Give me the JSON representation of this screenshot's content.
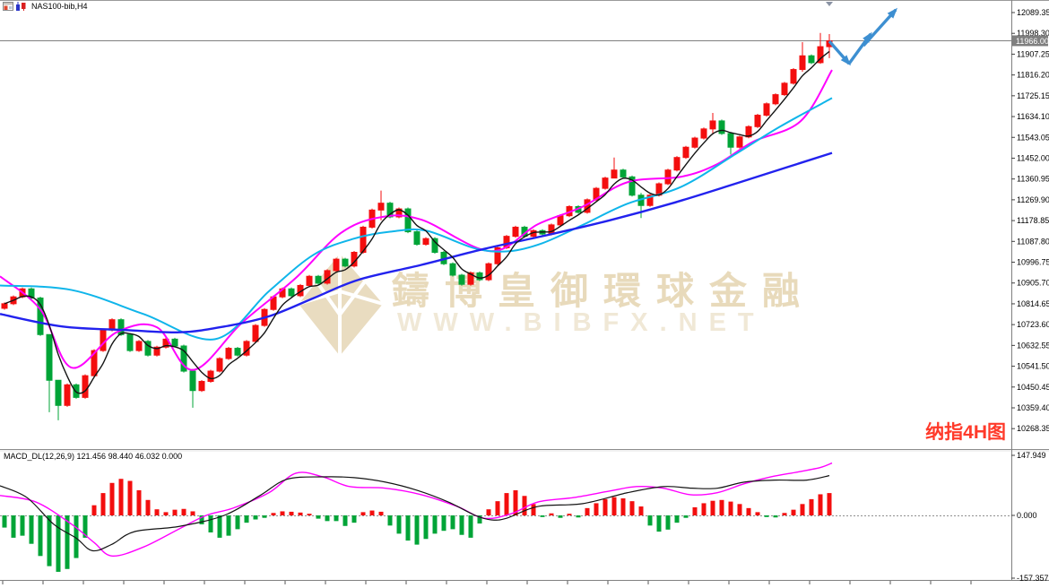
{
  "header": {
    "symbol": "NAS100-bib,H4"
  },
  "annotation": {
    "text": "纳指4H图",
    "color": "#ff3a2a"
  },
  "watermark": {
    "brand_text": "鑄博皇御環球金融",
    "url_text": "WWW.BIBFX.NET",
    "brand_color": "#e8dabb",
    "url_color": "#f0e8d6",
    "diamond_color": "#e9dcc0"
  },
  "macd_panel": {
    "label": "MACD_DL(12,26,9) 121.456 98.440 46.032 0.000",
    "axis_ticks": [
      "147.949",
      "0.000",
      "-157.357"
    ]
  },
  "price_axis": {
    "ticks": [
      "12089.35",
      "11998.30",
      "11907.25",
      "11816.20",
      "11725.15",
      "11634.10",
      "11543.05",
      "11452.00",
      "11360.95",
      "11269.90",
      "11178.85",
      "11087.80",
      "10996.75",
      "10905.70",
      "10814.65",
      "10723.60",
      "10632.55",
      "10541.50",
      "10450.45",
      "10359.40",
      "10268.35"
    ],
    "current_price": "11966.00",
    "badge_bg": "#7f7f7f",
    "badge_text_color": "#ffffff"
  },
  "chart_data": {
    "type": "candlestick",
    "symbol": "NAS100-bib",
    "timeframe": "H4",
    "ylim": [
      10268.35,
      12089.35
    ],
    "colors": {
      "bull": "#f30e0e",
      "bear": "#00a437",
      "ma_fast": "#141414",
      "ma_medium": "#ff00ff",
      "ma_slow": "#0fb5ea",
      "ma_slowest": "#2222ee",
      "price_line": "#808080",
      "macd_line": "#141414",
      "macd_signal": "#ff00ff",
      "zero_line": "#909090",
      "arrow": "#3d8fd1"
    },
    "candles": {
      "first_open": 10795,
      "closes": [
        10815,
        10845,
        10880,
        10840,
        10680,
        10480,
        10370,
        10460,
        10405,
        10500,
        10610,
        10700,
        10745,
        10680,
        10610,
        10650,
        10590,
        10625,
        10660,
        10630,
        10520,
        10435,
        10475,
        10520,
        10575,
        10620,
        10590,
        10650,
        10720,
        10790,
        10845,
        10880,
        10850,
        10895,
        10935,
        10905,
        10960,
        11010,
        10980,
        11040,
        11150,
        11225,
        11255,
        11195,
        11230,
        11130,
        11075,
        11100,
        11040,
        10990,
        10940,
        10900,
        10950,
        10920,
        10990,
        11060,
        11110,
        11150,
        11110,
        11135,
        11120,
        11160,
        11200,
        11240,
        11215,
        11270,
        11320,
        11365,
        11400,
        11370,
        11290,
        11245,
        11290,
        11340,
        11400,
        11455,
        11500,
        11540,
        11580,
        11615,
        11560,
        11500,
        11545,
        11590,
        11640,
        11690,
        11730,
        11780,
        11840,
        11900,
        11870,
        11940,
        11966
      ],
      "wick_overrides": {
        "5": [
          10660,
          10340
        ],
        "6": [
          10470,
          10305
        ],
        "21": [
          10530,
          10360
        ],
        "42": [
          11310,
          11180
        ],
        "68": [
          11455,
          11390
        ],
        "71": [
          11300,
          11190
        ],
        "79": [
          11650,
          11560
        ],
        "81": [
          11540,
          11468
        ],
        "89": [
          11960,
          11830
        ],
        "91": [
          12000,
          11865
        ],
        "92": [
          11995,
          11890
        ]
      },
      "default_wick": 6
    },
    "ma_lines": [
      {
        "name": "fast-black",
        "computed_period": 4
      },
      {
        "name": "medium-magenta",
        "points": [
          [
            0,
            10935
          ],
          [
            45,
            10790
          ],
          [
            80,
            10535
          ],
          [
            130,
            10690
          ],
          [
            175,
            10712
          ],
          [
            215,
            10525
          ],
          [
            270,
            10732
          ],
          [
            330,
            10928
          ],
          [
            380,
            11124
          ],
          [
            425,
            11194
          ],
          [
            470,
            11183
          ],
          [
            547,
            11045
          ],
          [
            600,
            11163
          ],
          [
            650,
            11240
          ],
          [
            700,
            11347
          ],
          [
            760,
            11371
          ],
          [
            800,
            11426
          ],
          [
            840,
            11524
          ],
          [
            893,
            11614
          ],
          [
            928,
            11838
          ]
        ]
      },
      {
        "name": "slow-cyan",
        "points": [
          [
            0,
            10895
          ],
          [
            80,
            10875
          ],
          [
            160,
            10770
          ],
          [
            240,
            10660
          ],
          [
            300,
            10870
          ],
          [
            350,
            11030
          ],
          [
            395,
            11100
          ],
          [
            435,
            11130
          ],
          [
            475,
            11135
          ],
          [
            530,
            11057
          ],
          [
            568,
            11045
          ],
          [
            605,
            11080
          ],
          [
            650,
            11160
          ],
          [
            700,
            11253
          ],
          [
            760,
            11327
          ],
          [
            820,
            11469
          ],
          [
            870,
            11590
          ],
          [
            928,
            11715
          ]
        ]
      },
      {
        "name": "slowest-blue",
        "points": [
          [
            0,
            10770
          ],
          [
            70,
            10715
          ],
          [
            140,
            10700
          ],
          [
            200,
            10690
          ],
          [
            250,
            10715
          ],
          [
            300,
            10760
          ],
          [
            350,
            10840
          ],
          [
            400,
            10920
          ],
          [
            470,
            10985
          ],
          [
            540,
            11055
          ],
          [
            610,
            11115
          ],
          [
            680,
            11180
          ],
          [
            750,
            11255
          ],
          [
            820,
            11340
          ],
          [
            880,
            11415
          ],
          [
            928,
            11475
          ]
        ]
      }
    ],
    "macd": {
      "histogram": [
        -30,
        -55,
        -50,
        -70,
        -100,
        -125,
        -139,
        -132,
        -105,
        -55,
        25,
        55,
        80,
        90,
        85,
        62,
        38,
        15,
        8,
        14,
        16,
        10,
        -22,
        -42,
        -55,
        -50,
        -34,
        -18,
        -10,
        -6,
        6,
        10,
        9,
        7,
        4,
        -8,
        -14,
        -14,
        -26,
        -18,
        8,
        12,
        9,
        -25,
        -45,
        -62,
        -72,
        -58,
        -45,
        -38,
        -34,
        -48,
        -55,
        -20,
        15,
        35,
        55,
        62,
        48,
        28,
        -4,
        5,
        -6,
        4,
        -5,
        18,
        30,
        40,
        45,
        42,
        35,
        22,
        -25,
        -40,
        -35,
        -18,
        -6,
        20,
        30,
        36,
        38,
        34,
        28,
        18,
        8,
        -4,
        -5,
        6,
        14,
        28,
        40,
        52,
        55
      ],
      "macd_line_points": [
        [
          0,
          73
        ],
        [
          30,
          44
        ],
        [
          60,
          -22
        ],
        [
          85,
          -56
        ],
        [
          103,
          -87
        ],
        [
          125,
          -71
        ],
        [
          150,
          -40
        ],
        [
          200,
          -27
        ],
        [
          250,
          0
        ],
        [
          290,
          49
        ],
        [
          320,
          89
        ],
        [
          360,
          95
        ],
        [
          395,
          93
        ],
        [
          430,
          82
        ],
        [
          465,
          62
        ],
        [
          500,
          33
        ],
        [
          530,
          0
        ],
        [
          548,
          -11
        ],
        [
          565,
          -7
        ],
        [
          600,
          22
        ],
        [
          650,
          29
        ],
        [
          700,
          56
        ],
        [
          740,
          71
        ],
        [
          772,
          67
        ],
        [
          800,
          67
        ],
        [
          830,
          82
        ],
        [
          865,
          87
        ],
        [
          900,
          87
        ],
        [
          925,
          98
        ]
      ],
      "signal_line_points": [
        [
          0,
          49
        ],
        [
          40,
          33
        ],
        [
          80,
          -22
        ],
        [
          105,
          -67
        ],
        [
          125,
          -100
        ],
        [
          160,
          -78
        ],
        [
          200,
          -33
        ],
        [
          230,
          0
        ],
        [
          260,
          18
        ],
        [
          300,
          56
        ],
        [
          330,
          104
        ],
        [
          360,
          95
        ],
        [
          390,
          71
        ],
        [
          430,
          67
        ],
        [
          470,
          51
        ],
        [
          510,
          22
        ],
        [
          540,
          -7
        ],
        [
          570,
          4
        ],
        [
          600,
          33
        ],
        [
          640,
          44
        ],
        [
          680,
          60
        ],
        [
          710,
          71
        ],
        [
          740,
          67
        ],
        [
          770,
          51
        ],
        [
          800,
          56
        ],
        [
          830,
          78
        ],
        [
          860,
          95
        ],
        [
          890,
          107
        ],
        [
          915,
          118
        ],
        [
          928,
          129
        ]
      ]
    },
    "arrows": {
      "segments": [
        {
          "from": [
            925,
            46
          ],
          "to": [
            947,
            71
          ]
        },
        {
          "from": [
            947,
            71
          ],
          "to": [
            971,
            38
          ]
        },
        {
          "from": [
            963,
            51
          ],
          "to": [
            999,
            11
          ]
        }
      ],
      "top_marker_x": 925
    }
  }
}
